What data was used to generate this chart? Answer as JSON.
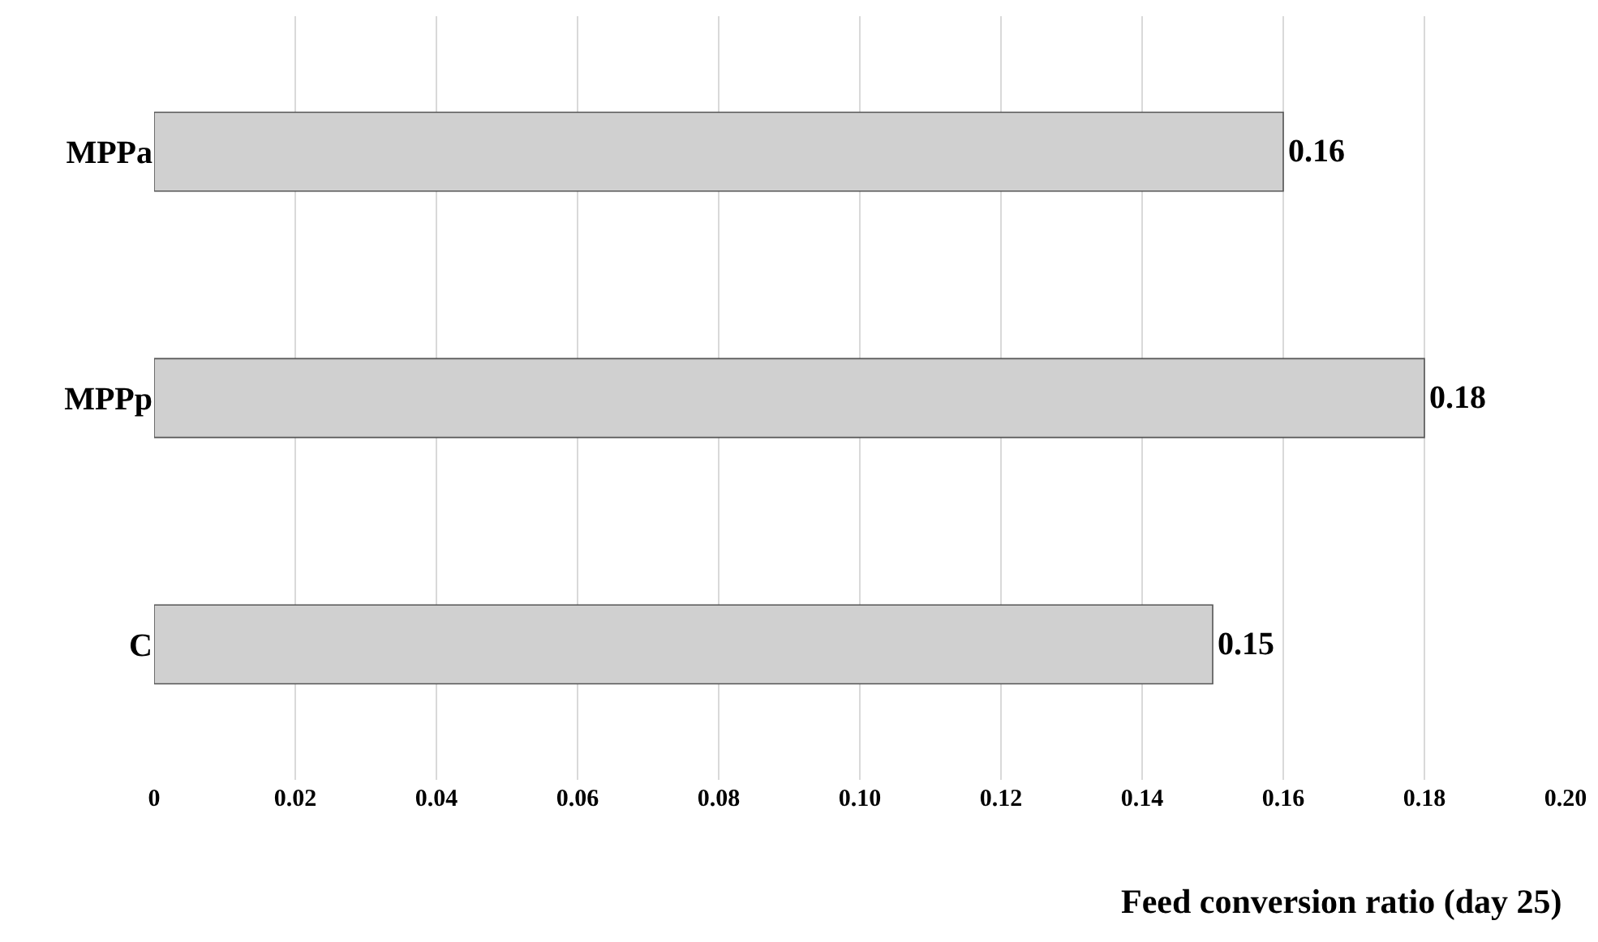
{
  "chart_data": {
    "type": "bar",
    "orientation": "horizontal",
    "xlabel": "Feed conversion ratio (day 25)",
    "categories": [
      "MPPa",
      "MPPp",
      "C"
    ],
    "values": [
      0.16,
      0.18,
      0.15
    ],
    "color": "#d0d0d0",
    "data_labels": true,
    "xlim": [
      0,
      0.2
    ],
    "xticks": [
      0,
      0.02,
      0.04,
      0.06,
      0.08,
      {
        "value": 0.1,
        "label": "0.10"
      },
      0.12,
      0.14,
      0.16,
      0.18,
      {
        "value": 0.2,
        "label": "0.20"
      }
    ],
    "grid": "x"
  }
}
